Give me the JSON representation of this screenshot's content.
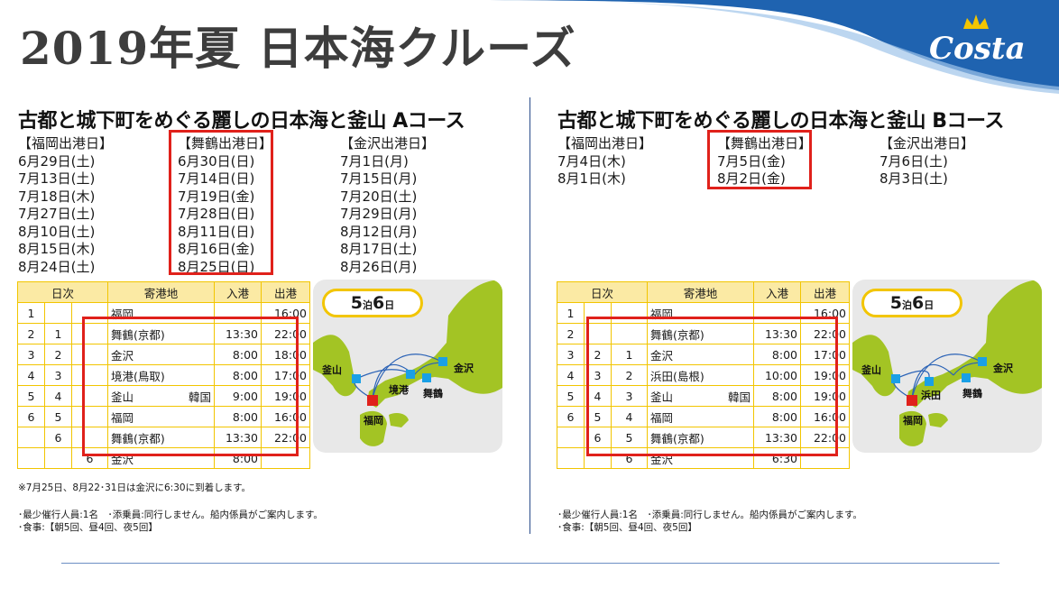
{
  "header": {
    "title": "2019年夏 日本海クルーズ",
    "logo_text": "Costa"
  },
  "colors": {
    "accent_blue": "#1f63b0",
    "highlight_red": "#e0211b",
    "table_yellow": "#f2c500",
    "map_green": "#a3c424"
  },
  "courseA": {
    "title": "古都と城下町をめぐる麗しの日本海と釜山 Aコース",
    "fukuoka": {
      "header": "【福岡出港日】",
      "dates": [
        "6月29日(土)",
        "7月13日(土)",
        "7月18日(木)",
        "7月27日(土)",
        "8月10日(土)",
        "8月15日(木)",
        "8月24日(土)"
      ]
    },
    "maizuru": {
      "header": "【舞鶴出港日】",
      "dates": [
        "6月30日(日)",
        "7月14日(日)",
        "7月19日(金)",
        "7月28日(日)",
        "8月11日(日)",
        "8月16日(金)",
        "8月25日(日)"
      ]
    },
    "kanazawa": {
      "header": "【金沢出港日】",
      "dates": [
        "7月1日(月)",
        "7月15日(月)",
        "7月20日(土)",
        "7月29日(月)",
        "8月12日(月)",
        "8月17日(土)",
        "8月26日(月)"
      ]
    },
    "table": {
      "headers": [
        "日次",
        "寄港地",
        "入港",
        "出港"
      ],
      "rows": [
        {
          "d1": "1",
          "d2": "",
          "d3": "",
          "port": "福岡",
          "country": "",
          "arr": "",
          "dep": "16:00"
        },
        {
          "d1": "2",
          "d2": "1",
          "d3": "",
          "port": "舞鶴(京都)",
          "country": "",
          "arr": "13:30",
          "dep": "22:00"
        },
        {
          "d1": "3",
          "d2": "2",
          "d3": "",
          "port": "金沢",
          "country": "",
          "arr": "8:00",
          "dep": "18:00"
        },
        {
          "d1": "4",
          "d2": "3",
          "d3": "",
          "port": "境港(鳥取)",
          "country": "",
          "arr": "8:00",
          "dep": "17:00"
        },
        {
          "d1": "5",
          "d2": "4",
          "d3": "",
          "port": "釜山",
          "country": "韓国",
          "arr": "9:00",
          "dep": "19:00"
        },
        {
          "d1": "6",
          "d2": "5",
          "d3": "",
          "port": "福岡",
          "country": "",
          "arr": "8:00",
          "dep": "16:00"
        },
        {
          "d1": "",
          "d2": "6",
          "d3": "",
          "port": "舞鶴(京都)",
          "country": "",
          "arr": "13:30",
          "dep": "22:00"
        },
        {
          "d1": "",
          "d2": "",
          "d3": "6",
          "port": "金沢",
          "country": "",
          "arr": "8:00",
          "dep": ""
        }
      ]
    },
    "badge": {
      "num1": "5",
      "unit1": "泊",
      "num2": "6",
      "unit2": "日"
    },
    "map_labels": [
      "釜山",
      "境港",
      "舞鶴",
      "金沢",
      "福岡"
    ],
    "note": "※7月25日、8月22･31日は金沢に6:30に到着します。",
    "info1": "･最少催行人員:1名　･添乗員:同行しません。船内係員がご案内します。",
    "info2": "･食事:【朝5回、昼4回、夜5回】"
  },
  "courseB": {
    "title": "古都と城下町をめぐる麗しの日本海と釜山 Bコース",
    "fukuoka": {
      "header": "【福岡出港日】",
      "dates": [
        "7月4日(木)",
        "8月1日(木)"
      ]
    },
    "maizuru": {
      "header": "【舞鶴出港日】",
      "dates": [
        "7月5日(金)",
        "8月2日(金)"
      ]
    },
    "kanazawa": {
      "header": "【金沢出港日】",
      "dates": [
        "7月6日(土)",
        "8月3日(土)"
      ]
    },
    "table": {
      "headers": [
        "日次",
        "寄港地",
        "入港",
        "出港"
      ],
      "rows": [
        {
          "d1": "1",
          "d2": "",
          "d3": "",
          "port": "福岡",
          "country": "",
          "arr": "",
          "dep": "16:00"
        },
        {
          "d1": "2",
          "d2": "",
          "d3": "",
          "port": "舞鶴(京都)",
          "country": "",
          "arr": "13:30",
          "dep": "22:00"
        },
        {
          "d1": "3",
          "d2": "2",
          "d3": "1",
          "port": "金沢",
          "country": "",
          "arr": "8:00",
          "dep": "17:00"
        },
        {
          "d1": "4",
          "d2": "3",
          "d3": "2",
          "port": "浜田(島根)",
          "country": "",
          "arr": "10:00",
          "dep": "19:00"
        },
        {
          "d1": "5",
          "d2": "4",
          "d3": "3",
          "port": "釜山",
          "country": "韓国",
          "arr": "8:00",
          "dep": "19:00"
        },
        {
          "d1": "6",
          "d2": "5",
          "d3": "4",
          "port": "福岡",
          "country": "",
          "arr": "8:00",
          "dep": "16:00"
        },
        {
          "d1": "",
          "d2": "6",
          "d3": "5",
          "port": "舞鶴(京都)",
          "country": "",
          "arr": "13:30",
          "dep": "22:00"
        },
        {
          "d1": "",
          "d2": "",
          "d3": "6",
          "port": "金沢",
          "country": "",
          "arr": "6:30",
          "dep": ""
        }
      ]
    },
    "badge": {
      "num1": "5",
      "unit1": "泊",
      "num2": "6",
      "unit2": "日"
    },
    "map_labels": [
      "釜山",
      "浜田",
      "舞鶴",
      "金沢",
      "福岡"
    ],
    "info1": "･最少催行人員:1名　･添乗員:同行しません。船内係員がご案内します。",
    "info2": "･食事:【朝5回、昼4回、夜5回】"
  }
}
